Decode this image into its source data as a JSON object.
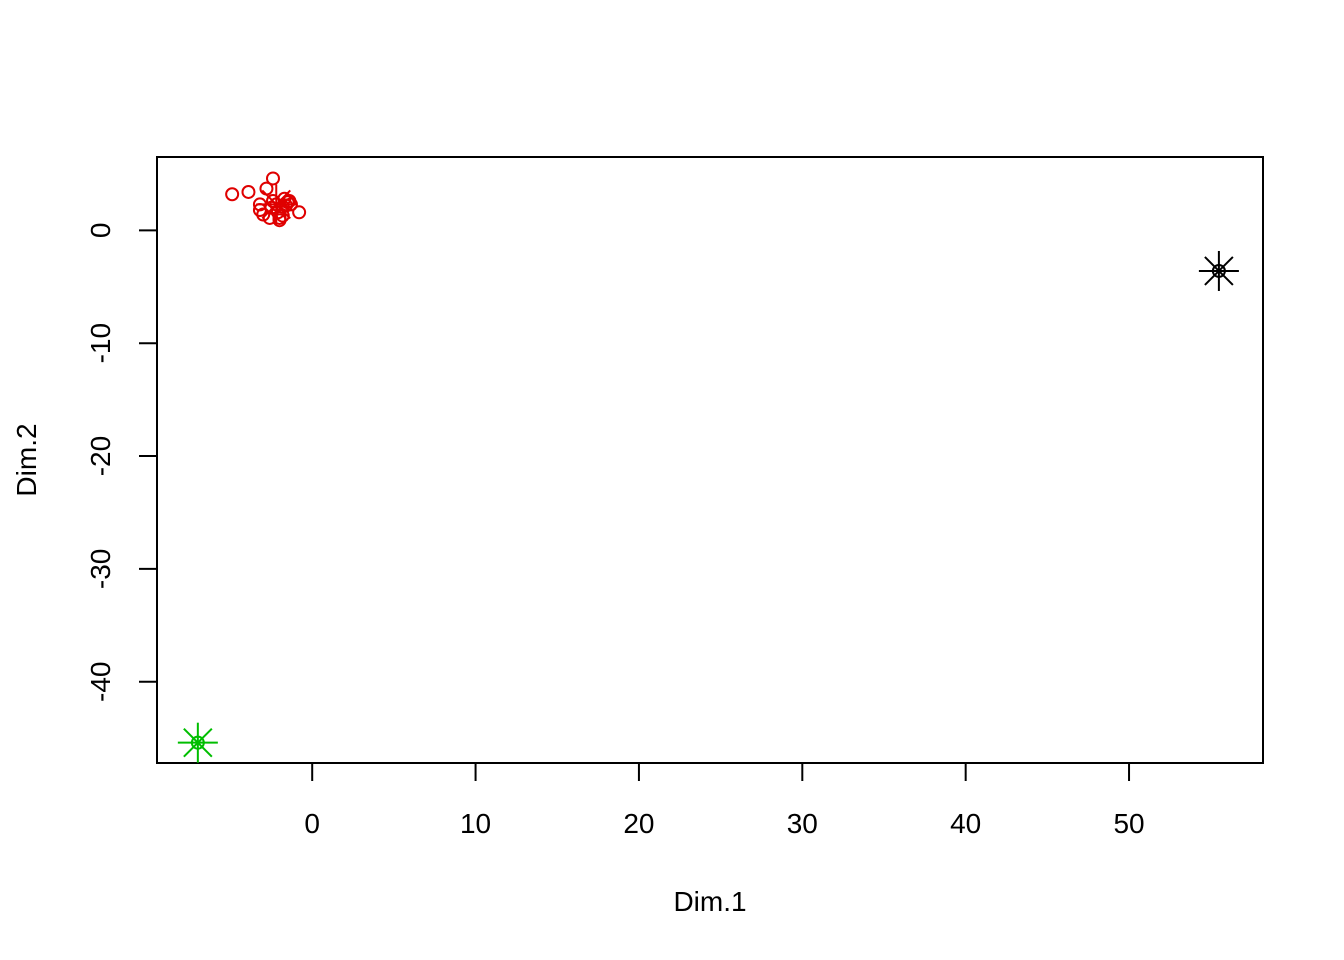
{
  "chart_data": {
    "type": "scatter",
    "xlabel": "Dim.1",
    "ylabel": "Dim.2",
    "xlim": [
      -9.5,
      58.2
    ],
    "ylim": [
      -47.2,
      6.5
    ],
    "xticks": [
      0,
      10,
      20,
      30,
      40,
      50
    ],
    "yticks": [
      0,
      -10,
      -20,
      -30,
      -40
    ],
    "grid": false,
    "legend": "none",
    "series": [
      {
        "color": "#DF0000",
        "marker": "circle",
        "points": [
          [
            -4.9,
            3.2
          ],
          [
            -3.9,
            3.4
          ],
          [
            -2.8,
            3.7
          ],
          [
            -2.4,
            4.6
          ],
          [
            -3.2,
            2.3
          ],
          [
            -3.2,
            1.8
          ],
          [
            -3.0,
            1.4
          ],
          [
            -2.6,
            1.1
          ],
          [
            -2.5,
            2.0
          ],
          [
            -2.4,
            2.6
          ],
          [
            -2.2,
            2.3
          ],
          [
            -2.1,
            1.6
          ],
          [
            -2.0,
            1.1
          ],
          [
            -2.0,
            0.9
          ],
          [
            -1.8,
            1.3
          ],
          [
            -1.8,
            2.1
          ],
          [
            -1.7,
            2.8
          ],
          [
            -1.6,
            2.2
          ],
          [
            -1.5,
            2.5
          ],
          [
            -1.4,
            2.6
          ],
          [
            -1.3,
            2.3
          ],
          [
            -0.8,
            1.6
          ]
        ],
        "centroid": [
          -2.2,
          2.3
        ]
      },
      {
        "color": "#000000",
        "marker": "circle",
        "points": [
          [
            55.5,
            -3.6
          ]
        ],
        "centroid": [
          55.5,
          -3.6
        ]
      },
      {
        "color": "#00BE00",
        "marker": "circle",
        "points": [
          [
            -7.0,
            -45.4
          ]
        ],
        "centroid": [
          -7.0,
          -45.4
        ]
      }
    ]
  }
}
